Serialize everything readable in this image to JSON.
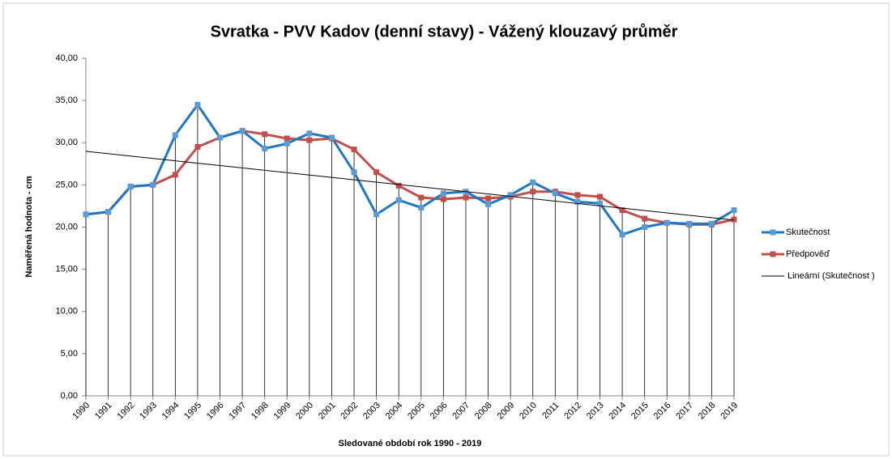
{
  "chart_data": {
    "type": "line",
    "title": "Svratka - PVV Kadov (denní stavy) - Vážený klouzavý průměr",
    "xlabel": "Sledované období rok 1990 - 2019",
    "ylabel": "Naměřená hodnota - cm",
    "categories": [
      "1990",
      "1991",
      "1992",
      "1993",
      "1994",
      "1995",
      "1996",
      "1997",
      "1998",
      "1999",
      "2000",
      "2001",
      "2002",
      "2003",
      "2004",
      "2005",
      "2006",
      "2007",
      "2008",
      "2009",
      "2010",
      "2011",
      "2012",
      "2013",
      "2014",
      "2015",
      "2016",
      "2017",
      "2018",
      "2019"
    ],
    "series": [
      {
        "name": "Skutečnost",
        "color": "#1f77c4",
        "marker": "#5b9bd5",
        "values": [
          21.5,
          21.8,
          24.8,
          25.0,
          30.9,
          34.5,
          30.6,
          31.4,
          29.3,
          29.9,
          31.1,
          30.6,
          26.5,
          21.5,
          23.2,
          22.3,
          24.0,
          24.2,
          22.7,
          23.8,
          25.3,
          24.0,
          23.0,
          22.8,
          19.1,
          20.0,
          20.5,
          20.4,
          20.4,
          22.0
        ]
      },
      {
        "name": "Předpověď",
        "color": "#c0504d",
        "marker": "#c0504d",
        "values": [
          21.5,
          21.8,
          24.8,
          25.0,
          26.2,
          29.5,
          30.6,
          31.4,
          31.0,
          30.5,
          30.3,
          30.5,
          29.2,
          26.5,
          24.9,
          23.5,
          23.3,
          23.5,
          23.4,
          23.6,
          24.2,
          24.2,
          23.8,
          23.6,
          22.0,
          21.0,
          20.5,
          20.3,
          20.3,
          20.9
        ]
      }
    ],
    "trendline": {
      "name": "Lineární (Skutečnost )",
      "color": "#000000"
    },
    "ylim": [
      0,
      40
    ],
    "yticks": [
      {
        "value": 0,
        "label": "0,00"
      },
      {
        "value": 5,
        "label": "5,00"
      },
      {
        "value": 10,
        "label": "10,00"
      },
      {
        "value": 15,
        "label": "15,00"
      },
      {
        "value": 20,
        "label": "20,00"
      },
      {
        "value": 25,
        "label": "25,00"
      },
      {
        "value": 30,
        "label": "30,00"
      },
      {
        "value": 35,
        "label": "35,00"
      },
      {
        "value": 40,
        "label": "40,00"
      }
    ],
    "drop_lines": true
  }
}
